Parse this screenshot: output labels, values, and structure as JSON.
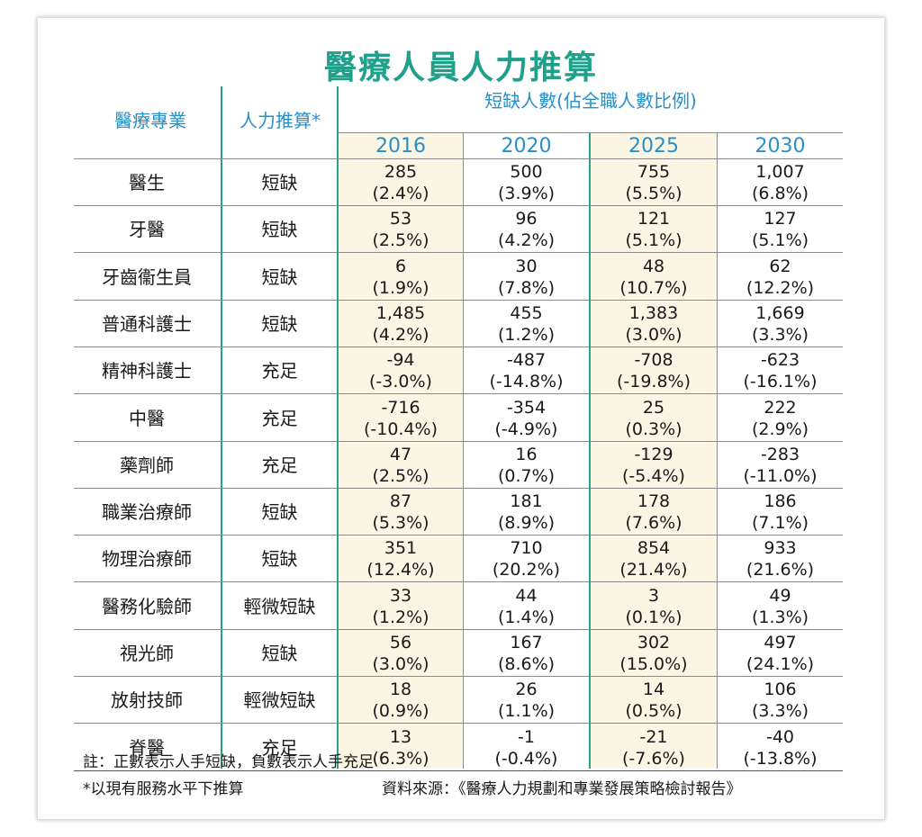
{
  "title": "醫療人員人力推算",
  "headers": {
    "profession": "醫療專業",
    "estimate": "人力推算*",
    "shortage": "短缺人數(佔全職人數比例)"
  },
  "chart_data": {
    "type": "table",
    "years": [
      "2016",
      "2020",
      "2025",
      "2030"
    ],
    "rows": [
      {
        "name": "醫生",
        "status": "短缺",
        "values": [
          [
            "285",
            "(2.4%)"
          ],
          [
            "500",
            "(3.9%)"
          ],
          [
            "755",
            "(5.5%)"
          ],
          [
            "1,007",
            "(6.8%)"
          ]
        ]
      },
      {
        "name": "牙醫",
        "status": "短缺",
        "values": [
          [
            "53",
            "(2.5%)"
          ],
          [
            "96",
            "(4.2%)"
          ],
          [
            "121",
            "(5.1%)"
          ],
          [
            "127",
            "(5.1%)"
          ]
        ]
      },
      {
        "name": "牙齒衞生員",
        "status": "短缺",
        "values": [
          [
            "6",
            "(1.9%)"
          ],
          [
            "30",
            "(7.8%)"
          ],
          [
            "48",
            "(10.7%)"
          ],
          [
            "62",
            "(12.2%)"
          ]
        ]
      },
      {
        "name": "普通科護士",
        "status": "短缺",
        "values": [
          [
            "1,485",
            "(4.2%)"
          ],
          [
            "455",
            "(1.2%)"
          ],
          [
            "1,383",
            "(3.0%)"
          ],
          [
            "1,669",
            "(3.3%)"
          ]
        ]
      },
      {
        "name": "精神科護士",
        "status": "充足",
        "values": [
          [
            "-94",
            "(-3.0%)"
          ],
          [
            "-487",
            "(-14.8%)"
          ],
          [
            "-708",
            "(-19.8%)"
          ],
          [
            "-623",
            "(-16.1%)"
          ]
        ]
      },
      {
        "name": "中醫",
        "status": "充足",
        "values": [
          [
            "-716",
            "(-10.4%)"
          ],
          [
            "-354",
            "(-4.9%)"
          ],
          [
            "25",
            "(0.3%)"
          ],
          [
            "222",
            "(2.9%)"
          ]
        ]
      },
      {
        "name": "藥劑師",
        "status": "充足",
        "values": [
          [
            "47",
            "(2.5%)"
          ],
          [
            "16",
            "(0.7%)"
          ],
          [
            "-129",
            "(-5.4%)"
          ],
          [
            "-283",
            "(-11.0%)"
          ]
        ]
      },
      {
        "name": "職業治療師",
        "status": "短缺",
        "values": [
          [
            "87",
            "(5.3%)"
          ],
          [
            "181",
            "(8.9%)"
          ],
          [
            "178",
            "(7.6%)"
          ],
          [
            "186",
            "(7.1%)"
          ]
        ]
      },
      {
        "name": "物理治療師",
        "status": "短缺",
        "values": [
          [
            "351",
            "(12.4%)"
          ],
          [
            "710",
            "(20.2%)"
          ],
          [
            "854",
            "(21.4%)"
          ],
          [
            "933",
            "(21.6%)"
          ]
        ]
      },
      {
        "name": "醫務化驗師",
        "status": "輕微短缺",
        "values": [
          [
            "33",
            "(1.2%)"
          ],
          [
            "44",
            "(1.4%)"
          ],
          [
            "3",
            "(0.1%)"
          ],
          [
            "49",
            "(1.3%)"
          ]
        ]
      },
      {
        "name": "視光師",
        "status": "短缺",
        "values": [
          [
            "56",
            "(3.0%)"
          ],
          [
            "167",
            "(8.6%)"
          ],
          [
            "302",
            "(15.0%)"
          ],
          [
            "497",
            "(24.1%)"
          ]
        ]
      },
      {
        "name": "放射技師",
        "status": "輕微短缺",
        "values": [
          [
            "18",
            "(0.9%)"
          ],
          [
            "26",
            "(1.1%)"
          ],
          [
            "14",
            "(0.5%)"
          ],
          [
            "106",
            "(3.3%)"
          ]
        ]
      },
      {
        "name": "脊醫",
        "status": "充足",
        "values": [
          [
            "13",
            "(6.3%)"
          ],
          [
            "-1",
            "(-0.4%)"
          ],
          [
            "-21",
            "(-7.6%)"
          ],
          [
            "-40",
            "(-13.8%)"
          ]
        ]
      }
    ]
  },
  "notes": {
    "note1": "註：正數表示人手短缺，負數表示人手充足",
    "note2": "*以現有服務水平下推算",
    "source": "資料來源：《醫療人力規劃和專業發展策略檢討報告》"
  },
  "colors": {
    "title": "#20a08a",
    "header_text": "#2a8fc8",
    "divider": "#2aa08c",
    "shade": "#fbf5e3"
  }
}
